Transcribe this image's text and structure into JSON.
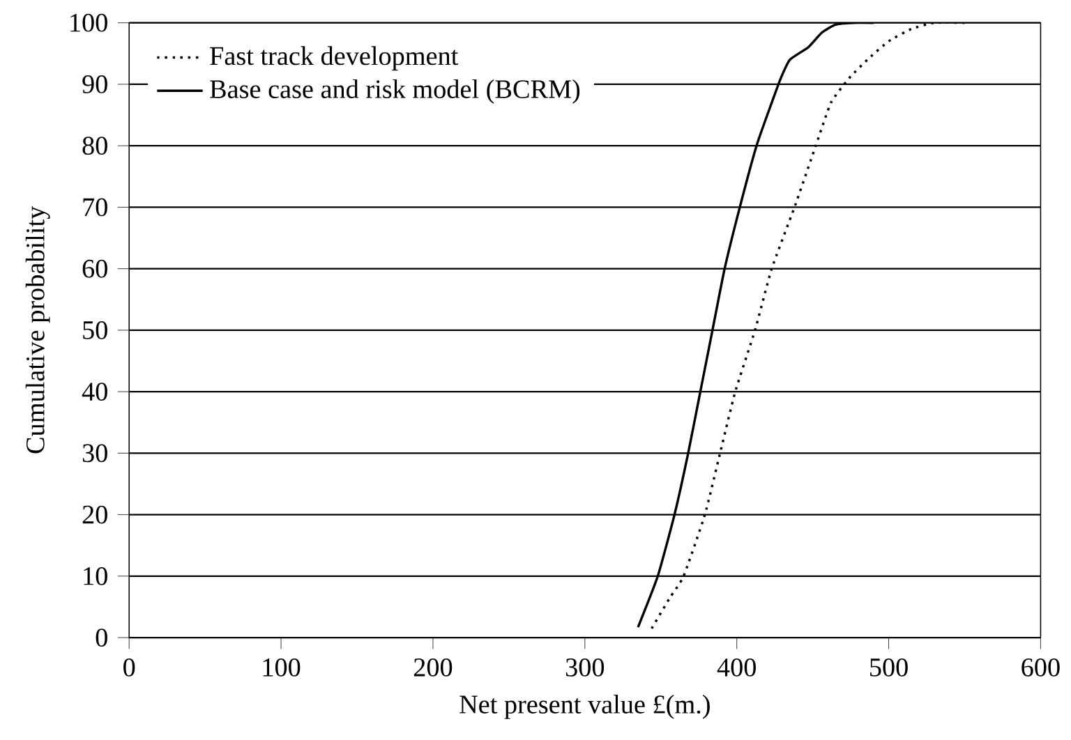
{
  "chart_data": {
    "type": "line",
    "xlabel": "Net present value £(m.)",
    "ylabel": "Cumulative probability",
    "xlim": [
      0,
      600
    ],
    "ylim": [
      0,
      100
    ],
    "xticks": [
      0,
      100,
      200,
      300,
      400,
      500,
      600
    ],
    "yticks": [
      0,
      10,
      20,
      30,
      40,
      50,
      60,
      70,
      80,
      90,
      100
    ],
    "grid": "y",
    "legend": "top left",
    "marker": "none",
    "series": [
      {
        "name": "Fast track development",
        "color": "#000000",
        "line_style": "dotted",
        "x": [
          344,
          356,
          365,
          379,
          389,
          399,
          412,
          423,
          438,
          452,
          462,
          474,
          486,
          500,
          515,
          530,
          550
        ],
        "values": [
          1.5,
          6.5,
          10,
          20,
          30,
          40,
          50,
          60,
          70,
          80,
          87,
          91,
          94,
          97,
          99,
          100,
          100
        ]
      },
      {
        "name": "Base case and risk model (BCRM)",
        "color": "#000000",
        "line_style": "solid",
        "x": [
          335,
          348,
          359,
          368,
          376,
          384,
          392,
          402,
          413,
          423,
          429,
          435,
          447,
          456,
          465,
          477,
          490
        ],
        "values": [
          1.7,
          10,
          20,
          30,
          40,
          50,
          60,
          70,
          80,
          87,
          91,
          94,
          96,
          98.4,
          99.7,
          100,
          100
        ]
      }
    ]
  }
}
